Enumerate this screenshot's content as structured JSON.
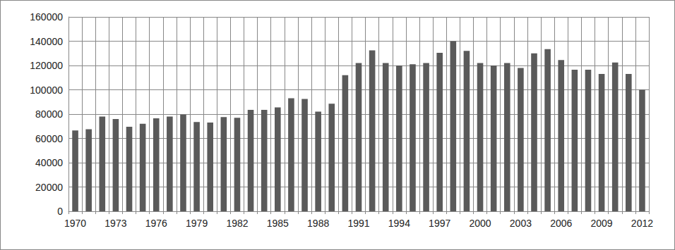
{
  "chart_data": {
    "type": "bar",
    "categories": [
      "1970",
      null,
      null,
      "1973",
      null,
      null,
      "1976",
      null,
      null,
      "1979",
      null,
      null,
      "1982",
      null,
      null,
      "1985",
      null,
      null,
      "1988",
      null,
      null,
      "1991",
      null,
      null,
      "1994",
      null,
      null,
      "1997",
      null,
      null,
      "2000",
      null,
      null,
      "2003",
      null,
      null,
      "2006",
      null,
      null,
      "2009",
      null,
      null,
      "2012"
    ],
    "values": [
      66500,
      67500,
      78000,
      76000,
      69500,
      72000,
      76500,
      78000,
      79500,
      73500,
      73000,
      77500,
      77000,
      83500,
      83500,
      85500,
      93000,
      92500,
      82000,
      88500,
      112000,
      122000,
      132500,
      122000,
      120000,
      121000,
      122000,
      130500,
      140000,
      132000,
      122000,
      120000,
      122000,
      118000,
      130000,
      133500,
      124500,
      116500,
      116500,
      113000,
      122500,
      113000,
      100000
    ],
    "color": "#5a5a5a",
    "ylim": [
      0,
      160000
    ],
    "yticks": [
      0,
      20000,
      40000,
      60000,
      80000,
      100000,
      120000,
      140000,
      160000
    ],
    "grid": true
  }
}
